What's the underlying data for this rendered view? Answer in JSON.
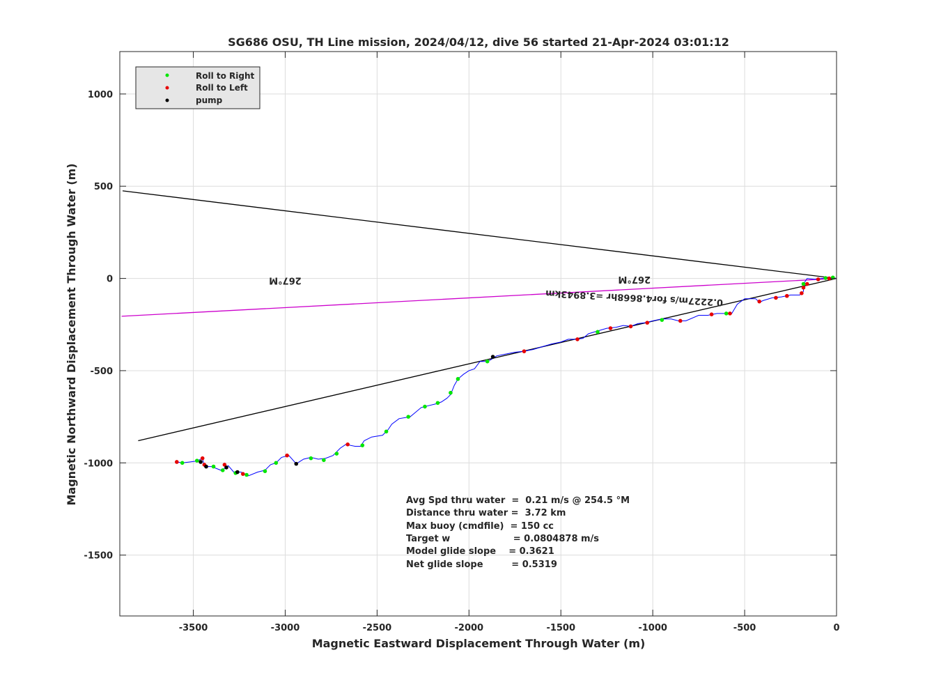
{
  "chart_data": {
    "type": "line",
    "title": "SG686 OSU, TH Line mission, 2024/04/12, dive 56 started 21-Apr-2024 03:01:12",
    "xlabel": "Magnetic Eastward Displacement Through Water (m)",
    "ylabel": "Magnetic Northward Displacement Through Water (m)",
    "xlim": [
      -3900,
      0
    ],
    "ylim": [
      -1830,
      1230
    ],
    "grid": true,
    "x_ticks": [
      {
        "v": -3500,
        "label": "-3500"
      },
      {
        "v": -3000,
        "label": "-3000"
      },
      {
        "v": -2500,
        "label": "-2500"
      },
      {
        "v": -2000,
        "label": "-2000"
      },
      {
        "v": -1500,
        "label": "-1500"
      },
      {
        "v": -1000,
        "label": "-1000"
      },
      {
        "v": -500,
        "label": "-500"
      },
      {
        "v": 0,
        "label": "0"
      }
    ],
    "y_ticks": [
      {
        "v": 1000,
        "label": "1000"
      },
      {
        "v": 500,
        "label": "500"
      },
      {
        "v": 0,
        "label": "0"
      },
      {
        "v": -500,
        "label": "-500"
      },
      {
        "v": -1000,
        "label": "-1000"
      },
      {
        "v": -1500,
        "label": "-1500"
      }
    ],
    "legend": {
      "placement": "top-left",
      "entries": [
        {
          "label": "Roll to Right",
          "color": "#00e600"
        },
        {
          "label": "Roll to Left",
          "color": "#e60000"
        },
        {
          "label": "pump",
          "color": "#000000"
        }
      ]
    },
    "lines": [
      {
        "color": "#000000",
        "points": [
          [
            -3885,
            475
          ],
          [
            0,
            0
          ]
        ]
      },
      {
        "color": "#000000",
        "points": [
          [
            -3800,
            -880
          ],
          [
            0,
            0
          ]
        ]
      },
      {
        "color": "#cc00cc",
        "points": [
          [
            -3890,
            -205
          ],
          [
            0,
            0
          ]
        ]
      }
    ],
    "annotations": [
      {
        "text": "267°M",
        "x": -3000,
        "y": 5,
        "rotate": 180
      },
      {
        "text": "267°M",
        "x": -1100,
        "y": 10,
        "rotate": 180
      },
      {
        "text": "0.2227m/s for4.8668hr =3.8943km",
        "x": -1100,
        "y": -90,
        "rotate": 183
      }
    ],
    "track": [
      [
        0,
        0
      ],
      [
        -40,
        5
      ],
      [
        -80,
        0
      ],
      [
        -120,
        -5
      ],
      [
        -160,
        0
      ],
      [
        -180,
        -30
      ],
      [
        -180,
        -70
      ],
      [
        -200,
        -90
      ],
      [
        -250,
        -90
      ],
      [
        -300,
        -100
      ],
      [
        -350,
        -105
      ],
      [
        -400,
        -120
      ],
      [
        -420,
        -130
      ],
      [
        -440,
        -110
      ],
      [
        -470,
        -110
      ],
      [
        -500,
        -110
      ],
      [
        -540,
        -140
      ],
      [
        -570,
        -190
      ],
      [
        -600,
        -190
      ],
      [
        -650,
        -190
      ],
      [
        -700,
        -200
      ],
      [
        -750,
        -200
      ],
      [
        -820,
        -230
      ],
      [
        -860,
        -230
      ],
      [
        -900,
        -220
      ],
      [
        -950,
        -220
      ],
      [
        -1000,
        -230
      ],
      [
        -1040,
        -240
      ],
      [
        -1080,
        -245
      ],
      [
        -1120,
        -260
      ],
      [
        -1160,
        -255
      ],
      [
        -1200,
        -265
      ],
      [
        -1250,
        -270
      ],
      [
        -1300,
        -285
      ],
      [
        -1350,
        -300
      ],
      [
        -1380,
        -325
      ],
      [
        -1420,
        -330
      ],
      [
        -1460,
        -330
      ],
      [
        -1500,
        -345
      ],
      [
        -1550,
        -355
      ],
      [
        -1600,
        -370
      ],
      [
        -1650,
        -385
      ],
      [
        -1700,
        -395
      ],
      [
        -1750,
        -400
      ],
      [
        -1800,
        -410
      ],
      [
        -1850,
        -420
      ],
      [
        -1880,
        -440
      ],
      [
        -1900,
        -450
      ],
      [
        -1940,
        -450
      ],
      [
        -1970,
        -490
      ],
      [
        -2000,
        -500
      ],
      [
        -2030,
        -520
      ],
      [
        -2060,
        -545
      ],
      [
        -2080,
        -580
      ],
      [
        -2100,
        -630
      ],
      [
        -2120,
        -650
      ],
      [
        -2150,
        -670
      ],
      [
        -2180,
        -680
      ],
      [
        -2220,
        -690
      ],
      [
        -2260,
        -700
      ],
      [
        -2320,
        -750
      ],
      [
        -2380,
        -760
      ],
      [
        -2420,
        -790
      ],
      [
        -2440,
        -820
      ],
      [
        -2470,
        -850
      ],
      [
        -2530,
        -860
      ],
      [
        -2570,
        -880
      ],
      [
        -2590,
        -910
      ],
      [
        -2620,
        -910
      ],
      [
        -2670,
        -900
      ],
      [
        -2700,
        -920
      ],
      [
        -2740,
        -960
      ],
      [
        -2780,
        -975
      ],
      [
        -2820,
        -980
      ],
      [
        -2860,
        -970
      ],
      [
        -2900,
        -980
      ],
      [
        -2940,
        -1005
      ],
      [
        -2980,
        -960
      ],
      [
        -3020,
        -970
      ],
      [
        -3050,
        -1000
      ],
      [
        -3080,
        -1010
      ],
      [
        -3110,
        -1040
      ],
      [
        -3150,
        -1050
      ],
      [
        -3200,
        -1070
      ],
      [
        -3240,
        -1050
      ],
      [
        -3280,
        -1050
      ],
      [
        -3310,
        -1015
      ],
      [
        -3330,
        -1030
      ],
      [
        -3350,
        -1040
      ],
      [
        -3400,
        -1020
      ],
      [
        -3440,
        -1020
      ],
      [
        -3450,
        -975
      ],
      [
        -3480,
        -990
      ],
      [
        -3520,
        -995
      ],
      [
        -3560,
        -1000
      ],
      [
        -3590,
        -995
      ]
    ],
    "roll_right_points": [
      [
        -20,
        5
      ],
      [
        -60,
        2
      ],
      [
        -180,
        -30
      ],
      [
        -600,
        -190
      ],
      [
        -950,
        -225
      ],
      [
        -1300,
        -290
      ],
      [
        -1900,
        -450
      ],
      [
        -2060,
        -545
      ],
      [
        -2100,
        -620
      ],
      [
        -2170,
        -675
      ],
      [
        -2240,
        -695
      ],
      [
        -2330,
        -750
      ],
      [
        -2450,
        -830
      ],
      [
        -2580,
        -905
      ],
      [
        -2720,
        -950
      ],
      [
        -2790,
        -985
      ],
      [
        -2860,
        -975
      ],
      [
        -3050,
        -1000
      ],
      [
        -3110,
        -1045
      ],
      [
        -3210,
        -1065
      ],
      [
        -3270,
        -1055
      ],
      [
        -3340,
        -1040
      ],
      [
        -3390,
        -1020
      ],
      [
        -3480,
        -988
      ],
      [
        -3560,
        -1000
      ]
    ],
    "roll_left_points": [
      [
        -40,
        0
      ],
      [
        -100,
        -5
      ],
      [
        -160,
        -30
      ],
      [
        -180,
        -50
      ],
      [
        -190,
        -80
      ],
      [
        -270,
        -95
      ],
      [
        -330,
        -105
      ],
      [
        -420,
        -125
      ],
      [
        -580,
        -190
      ],
      [
        -680,
        -195
      ],
      [
        -850,
        -230
      ],
      [
        -1030,
        -240
      ],
      [
        -1120,
        -260
      ],
      [
        -1230,
        -270
      ],
      [
        -1410,
        -330
      ],
      [
        -1700,
        -395
      ],
      [
        -2660,
        -900
      ],
      [
        -2990,
        -960
      ],
      [
        -3230,
        -1060
      ],
      [
        -3330,
        -1010
      ],
      [
        -3450,
        -975
      ],
      [
        -3440,
        -1010
      ],
      [
        -3590,
        -995
      ]
    ],
    "pump_points": [
      [
        -1870,
        -425
      ],
      [
        -2940,
        -1005
      ],
      [
        -3260,
        -1050
      ],
      [
        -3320,
        -1025
      ],
      [
        -3430,
        -1020
      ],
      [
        -3460,
        -995
      ]
    ],
    "stats": [
      "Avg Spd thru water  =  0.21 m/s @ 254.5 °M",
      "Distance thru water =  3.72 km",
      "Max buoy (cmdfile)  = 150 cc",
      "Target w                    = 0.0804878 m/s",
      "Model glide slope    = 0.3621",
      "Net glide slope         = 0.5319"
    ]
  }
}
